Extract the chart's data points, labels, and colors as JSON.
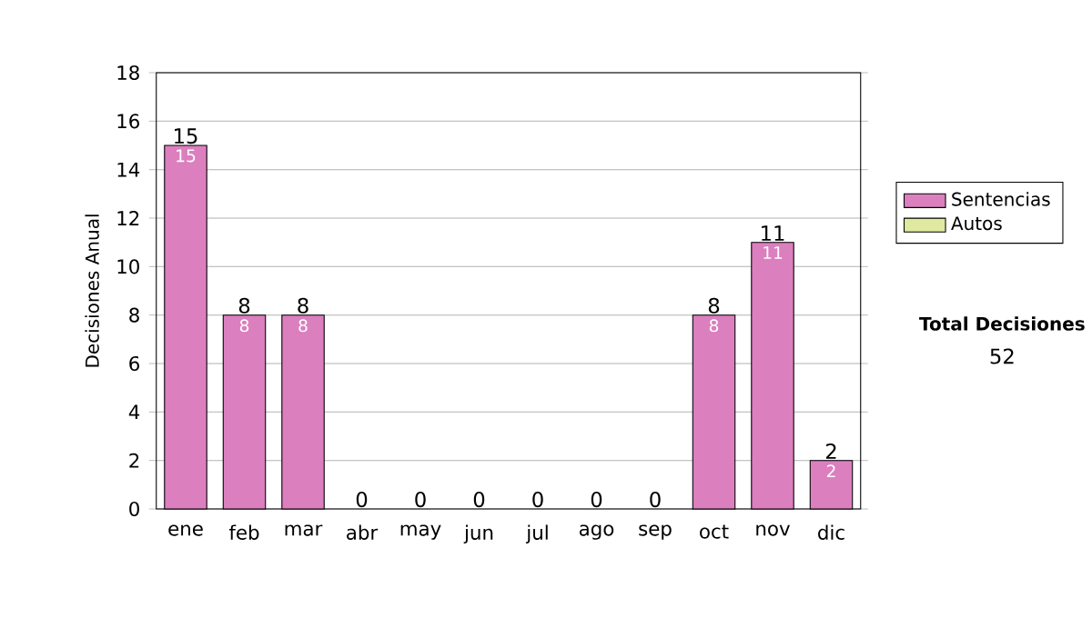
{
  "chart_data": {
    "type": "bar",
    "stacked": true,
    "ylabel": "Decisiones Anual",
    "categories": [
      "ene",
      "feb",
      "mar",
      "abr",
      "may",
      "jun",
      "jul",
      "ago",
      "sep",
      "oct",
      "nov",
      "dic"
    ],
    "series": [
      {
        "name": "Sentencias",
        "color": "#db7fbf",
        "values": [
          15,
          8,
          8,
          0,
          0,
          0,
          0,
          0,
          0,
          8,
          11,
          2
        ],
        "value_labels": [
          "15",
          "8",
          "8",
          null,
          null,
          null,
          null,
          null,
          null,
          "8",
          "11",
          "2"
        ]
      },
      {
        "name": "Autos",
        "color": "#dfeaa0",
        "values": [
          0,
          0,
          0,
          0,
          0,
          0,
          0,
          0,
          0,
          0,
          0,
          0
        ]
      }
    ],
    "totals": [
      "15",
      "8",
      "8",
      "0",
      "0",
      "0",
      "0",
      "0",
      "0",
      "8",
      "11",
      "2"
    ],
    "ylim": [
      0,
      18
    ],
    "yticks": [
      0,
      2,
      4,
      6,
      8,
      10,
      12,
      14,
      16,
      18
    ],
    "grid": "y",
    "legend": "right",
    "annotations": [
      "Total Decisiones",
      "52"
    ]
  }
}
